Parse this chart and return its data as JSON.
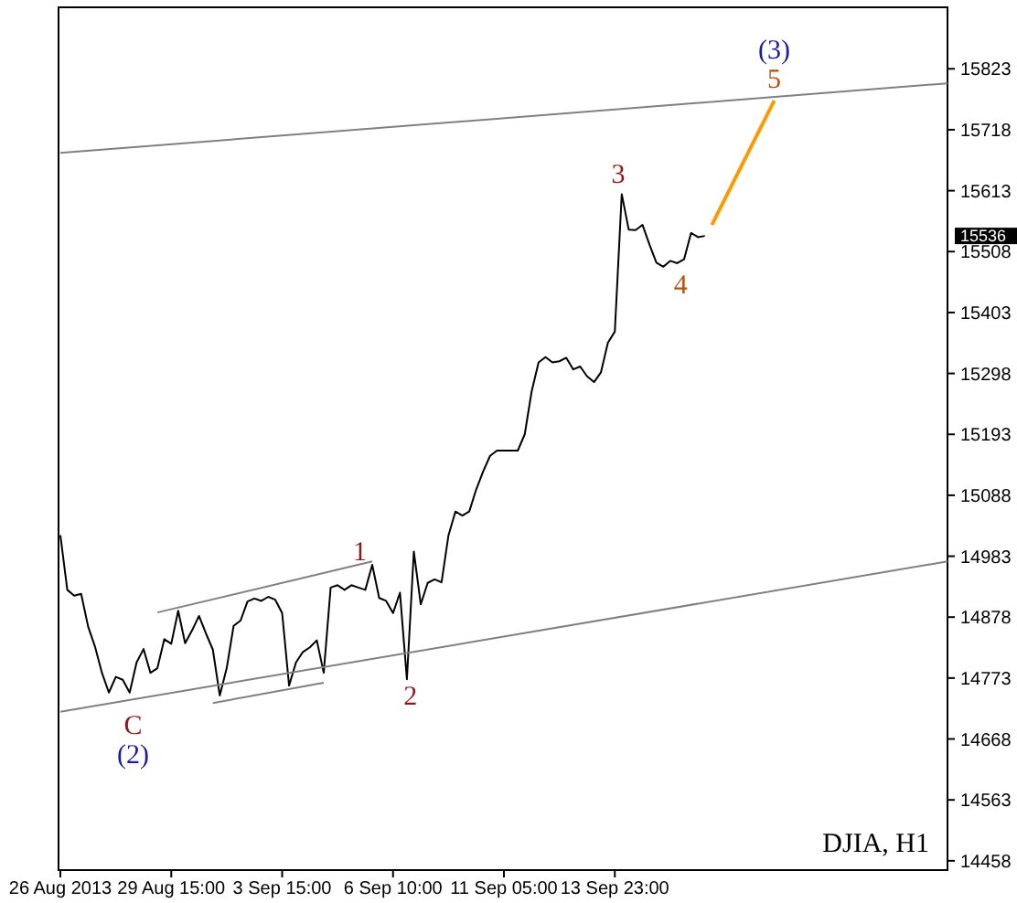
{
  "chart_data": {
    "type": "line",
    "ylim": [
      14442,
      15929
    ],
    "categories": [
      "26 Aug 2013",
      null,
      null,
      null,
      null,
      null,
      null,
      null,
      null,
      null,
      null,
      null,
      null,
      null,
      null,
      null,
      "29 Aug 15:00",
      null,
      null,
      null,
      null,
      null,
      null,
      null,
      null,
      null,
      null,
      null,
      null,
      null,
      null,
      null,
      "3 Sep 15:00",
      null,
      null,
      null,
      null,
      null,
      null,
      null,
      null,
      null,
      null,
      null,
      null,
      null,
      null,
      null,
      "6 Sep 10:00",
      null,
      null,
      null,
      null,
      null,
      null,
      null,
      null,
      null,
      null,
      null,
      null,
      null,
      null,
      null,
      "11 Sep 05:00",
      null,
      null,
      null,
      null,
      null,
      null,
      null,
      null,
      null,
      null,
      null,
      null,
      null,
      null,
      null,
      "13 Sep 23:00",
      null,
      null,
      null,
      null,
      null,
      null,
      null,
      null,
      null,
      null,
      null,
      null,
      null,
      null,
      null,
      null,
      null,
      null,
      null,
      null,
      null,
      null,
      null,
      null,
      null,
      null,
      null,
      null,
      null,
      null,
      null,
      null,
      null,
      null,
      null,
      null,
      null,
      null,
      null,
      null,
      null,
      null,
      null,
      null,
      null,
      null,
      null,
      null
    ],
    "yticks": [
      14458,
      14563,
      14668,
      14773,
      14878,
      14983,
      15088,
      15193,
      15298,
      15403,
      15508,
      15613,
      15718,
      15823
    ],
    "grid": false,
    "series": [
      {
        "color": "#000000",
        "values": [
          15019,
          14925,
          14915,
          14918,
          14862,
          14827,
          14782,
          14748,
          14775,
          14770,
          14748,
          14800,
          14823,
          14782,
          14790,
          14840,
          14832,
          14889,
          14833,
          14855,
          14880,
          14850,
          14822,
          14743,
          14790,
          14863,
          14872,
          14905,
          14910,
          14906,
          14913,
          14908,
          14885,
          14760,
          14800,
          14818,
          14826,
          14838,
          14782,
          14929,
          14933,
          14925,
          14933,
          14929,
          14925,
          14968,
          14911,
          14906,
          14885,
          14920,
          14771,
          14991,
          14900,
          14937,
          14943,
          14938,
          15019,
          15060,
          15053,
          15060,
          15098,
          15129,
          15156,
          15165,
          15165,
          15165,
          15165,
          15193,
          15267,
          15317,
          15326,
          15317,
          15319,
          15325,
          15305,
          15310,
          15293,
          15283,
          15300,
          15351,
          15370,
          15607,
          15546,
          15545,
          15554,
          15520,
          15489,
          15482,
          15492,
          15488,
          15495,
          15540,
          15533,
          15535,
          null,
          null,
          null,
          null,
          null,
          null,
          null,
          null,
          null,
          null,
          null,
          null,
          null,
          null,
          null,
          null,
          null,
          null,
          null,
          null,
          null,
          null,
          null,
          null,
          null,
          null,
          null,
          null,
          null,
          null,
          null,
          null,
          null,
          null,
          null
        ]
      },
      {
        "color": "#ff9900",
        "values": [
          null,
          null,
          null,
          null,
          null,
          null,
          null,
          null,
          null,
          null,
          null,
          null,
          null,
          null,
          null,
          null,
          null,
          null,
          null,
          null,
          null,
          null,
          null,
          null,
          null,
          null,
          null,
          null,
          null,
          null,
          null,
          null,
          null,
          null,
          null,
          null,
          null,
          null,
          null,
          null,
          null,
          null,
          null,
          null,
          null,
          null,
          null,
          null,
          null,
          null,
          null,
          null,
          null,
          null,
          null,
          null,
          null,
          null,
          null,
          null,
          null,
          null,
          null,
          null,
          null,
          null,
          null,
          null,
          null,
          null,
          null,
          null,
          null,
          null,
          null,
          null,
          null,
          null,
          null,
          null,
          null,
          null,
          null,
          null,
          null,
          null,
          null,
          null,
          null,
          null,
          null,
          null,
          null,
          null,
          15554,
          null,
          null,
          null,
          null,
          null,
          null,
          null,
          null,
          15768,
          null,
          null,
          null,
          null,
          null,
          null,
          null,
          null,
          null,
          null,
          null,
          null,
          null,
          null,
          null,
          null,
          null,
          null,
          null,
          null,
          null,
          null,
          null,
          null,
          null
        ]
      },
      {
        "color": "#808080",
        "values": [
          15678,
          null,
          null,
          null,
          null,
          null,
          null,
          null,
          null,
          null,
          null,
          null,
          null,
          null,
          null,
          null,
          null,
          null,
          null,
          null,
          null,
          null,
          null,
          null,
          null,
          null,
          null,
          null,
          null,
          null,
          null,
          null,
          null,
          null,
          null,
          null,
          null,
          null,
          null,
          null,
          null,
          null,
          null,
          null,
          null,
          null,
          null,
          null,
          null,
          null,
          null,
          null,
          null,
          null,
          null,
          null,
          null,
          null,
          null,
          null,
          null,
          null,
          null,
          null,
          null,
          null,
          null,
          null,
          null,
          null,
          null,
          null,
          null,
          null,
          null,
          null,
          null,
          null,
          null,
          null,
          null,
          null,
          null,
          null,
          null,
          null,
          null,
          null,
          null,
          null,
          null,
          null,
          null,
          null,
          null,
          null,
          null,
          null,
          null,
          null,
          null,
          null,
          null,
          null,
          null,
          null,
          null,
          null,
          null,
          null,
          null,
          null,
          null,
          null,
          null,
          null,
          null,
          null,
          null,
          null,
          null,
          null,
          null,
          null,
          null,
          null,
          null,
          null,
          15798
        ]
      },
      {
        "color": "#808080",
        "values": [
          14715,
          null,
          null,
          null,
          null,
          null,
          null,
          null,
          null,
          null,
          null,
          null,
          null,
          null,
          null,
          null,
          null,
          null,
          null,
          null,
          null,
          null,
          null,
          null,
          null,
          null,
          null,
          null,
          null,
          null,
          null,
          null,
          null,
          null,
          null,
          null,
          null,
          null,
          null,
          null,
          null,
          null,
          null,
          null,
          null,
          null,
          null,
          null,
          null,
          null,
          null,
          null,
          null,
          null,
          null,
          null,
          null,
          null,
          null,
          null,
          null,
          null,
          null,
          null,
          null,
          null,
          null,
          null,
          null,
          null,
          null,
          null,
          null,
          null,
          null,
          null,
          null,
          null,
          null,
          null,
          null,
          null,
          null,
          null,
          null,
          null,
          null,
          null,
          null,
          null,
          null,
          null,
          null,
          null,
          null,
          null,
          null,
          null,
          null,
          null,
          null,
          null,
          null,
          null,
          null,
          null,
          null,
          null,
          null,
          null,
          null,
          null,
          null,
          null,
          null,
          null,
          null,
          null,
          null,
          null,
          null,
          null,
          null,
          null,
          null,
          null,
          null,
          null,
          14974
        ]
      },
      {
        "color": "#808080",
        "values": [
          null,
          null,
          null,
          null,
          null,
          null,
          null,
          null,
          null,
          null,
          null,
          null,
          null,
          null,
          14886,
          null,
          null,
          null,
          null,
          null,
          null,
          null,
          null,
          null,
          null,
          null,
          null,
          null,
          null,
          null,
          null,
          null,
          null,
          null,
          null,
          null,
          null,
          null,
          null,
          null,
          null,
          null,
          null,
          null,
          null,
          14974,
          null,
          null,
          null,
          null,
          null,
          null,
          null,
          null,
          null,
          null,
          null,
          null,
          null,
          null,
          null,
          null,
          null,
          null,
          null,
          null,
          null,
          null,
          null,
          null,
          null,
          null,
          null,
          null,
          null,
          null,
          null,
          null,
          null,
          null,
          null,
          null,
          null,
          null,
          null,
          null,
          null,
          null,
          null,
          null,
          null,
          null,
          null,
          null,
          null,
          null,
          null,
          null,
          null,
          null,
          null,
          null,
          null,
          null,
          null,
          null,
          null,
          null,
          null,
          null,
          null,
          null,
          null,
          null,
          null,
          null,
          null,
          null,
          null,
          null,
          null,
          null,
          null,
          null,
          null,
          null,
          null,
          null,
          null
        ]
      },
      {
        "color": "#808080",
        "values": [
          null,
          null,
          null,
          null,
          null,
          null,
          null,
          null,
          null,
          null,
          null,
          null,
          null,
          null,
          null,
          null,
          null,
          null,
          null,
          null,
          null,
          null,
          14730,
          null,
          null,
          null,
          null,
          null,
          null,
          null,
          null,
          null,
          null,
          null,
          null,
          null,
          null,
          null,
          14765,
          null,
          null,
          null,
          null,
          null,
          null,
          null,
          null,
          null,
          null,
          null,
          null,
          null,
          null,
          null,
          null,
          null,
          null,
          null,
          null,
          null,
          null,
          null,
          null,
          null,
          null,
          null,
          null,
          null,
          null,
          null,
          null,
          null,
          null,
          null,
          null,
          null,
          null,
          null,
          null,
          null,
          null,
          null,
          null,
          null,
          null,
          null,
          null,
          null,
          null,
          null,
          null,
          null,
          null,
          null,
          null,
          null,
          null,
          null,
          null,
          null,
          null,
          null,
          null,
          null,
          null,
          null,
          null,
          null,
          null,
          null,
          null,
          null,
          null,
          null,
          null,
          null,
          null,
          null,
          null,
          null,
          null,
          null,
          null,
          null,
          null,
          null,
          null,
          null,
          null
        ]
      }
    ],
    "annotations": [
      "1",
      "2",
      "3",
      "4",
      "5",
      "(3)",
      "C",
      "(2)",
      "DJIA, H1",
      "15536"
    ]
  }
}
